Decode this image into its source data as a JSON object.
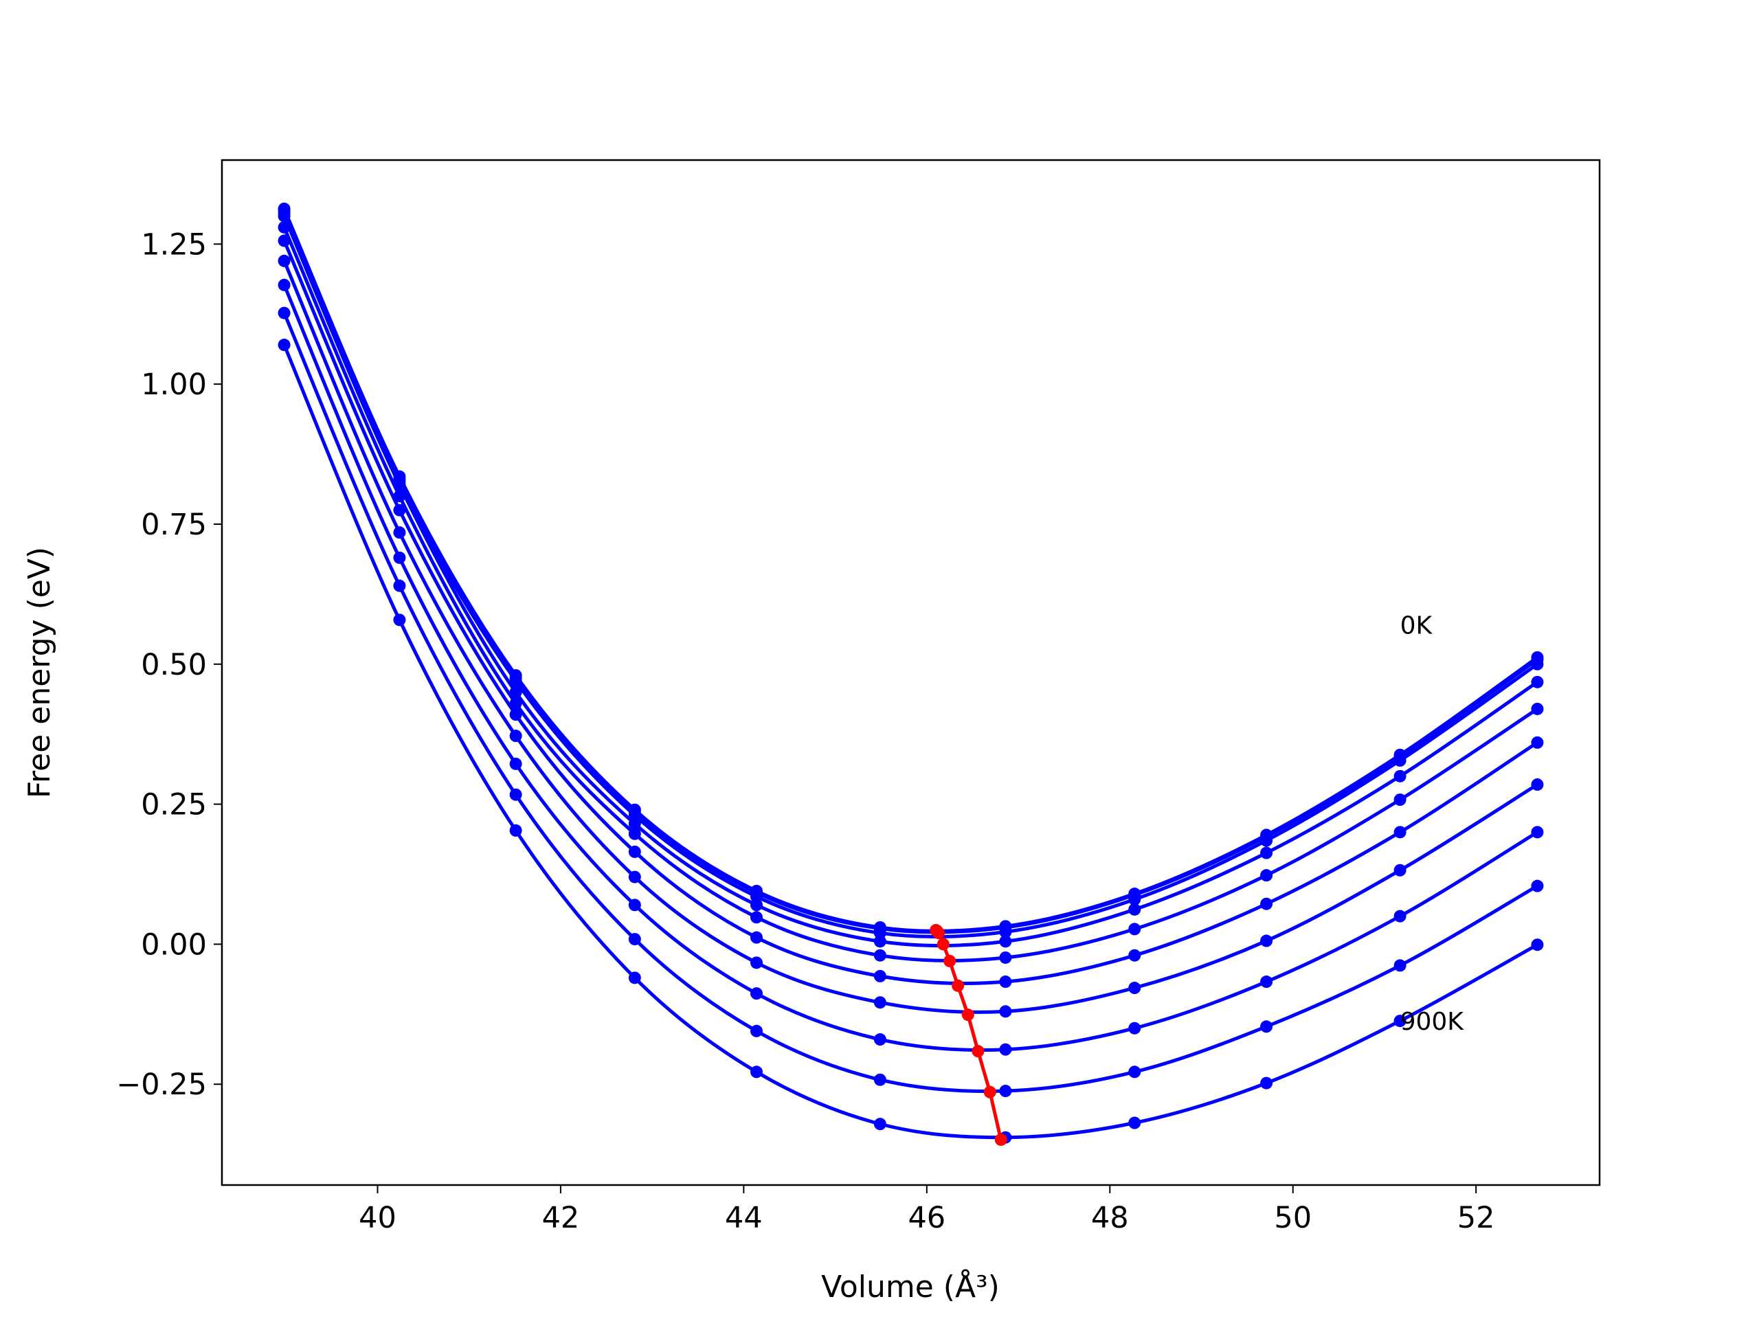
{
  "chart_data": {
    "type": "line",
    "xlabel": "Volume (Å³)",
    "ylabel": "Free energy (eV)",
    "x": [
      38.98,
      40.24,
      41.51,
      42.81,
      44.14,
      45.49,
      46.86,
      48.27,
      49.71,
      51.17,
      52.67
    ],
    "series": [
      {
        "color": "#0000ff",
        "values": [
          1.313,
          0.835,
          0.48,
          0.24,
          0.095,
          0.03,
          0.032,
          0.09,
          0.195,
          0.338,
          0.512
        ]
      },
      {
        "color": "#0000ff",
        "values": [
          1.31,
          0.83,
          0.475,
          0.237,
          0.092,
          0.028,
          0.03,
          0.088,
          0.192,
          0.335,
          0.508
        ]
      },
      {
        "color": "#0000ff",
        "values": [
          1.305,
          0.825,
          0.47,
          0.23,
          0.085,
          0.02,
          0.022,
          0.08,
          0.185,
          0.328,
          0.5
        ]
      },
      {
        "color": "#0000ff",
        "values": [
          1.3,
          0.82,
          0.45,
          0.215,
          0.07,
          0.005,
          0.005,
          0.062,
          0.163,
          0.3,
          0.468
        ]
      },
      {
        "color": "#0000ff",
        "values": [
          1.28,
          0.8,
          0.43,
          0.197,
          0.048,
          -0.02,
          -0.024,
          0.027,
          0.123,
          0.258,
          0.42
        ]
      },
      {
        "color": "#0000ff",
        "values": [
          1.256,
          0.775,
          0.41,
          0.165,
          0.012,
          -0.057,
          -0.067,
          -0.02,
          0.072,
          0.2,
          0.36
        ]
      },
      {
        "color": "#0000ff",
        "values": [
          1.22,
          0.735,
          0.372,
          0.12,
          -0.033,
          -0.104,
          -0.12,
          -0.078,
          0.006,
          0.132,
          0.285
        ]
      },
      {
        "color": "#0000ff",
        "values": [
          1.177,
          0.69,
          0.322,
          0.07,
          -0.088,
          -0.17,
          -0.188,
          -0.15,
          -0.067,
          0.05,
          0.2
        ]
      },
      {
        "color": "#0000ff",
        "values": [
          1.127,
          0.64,
          0.267,
          0.009,
          -0.155,
          -0.242,
          -0.262,
          -0.228,
          -0.147,
          -0.038,
          0.104
        ]
      },
      {
        "color": "#0000ff",
        "values": [
          1.07,
          0.579,
          0.203,
          -0.06,
          -0.228,
          -0.321,
          -0.345,
          -0.319,
          -0.248,
          -0.137,
          -0.001
        ]
      }
    ],
    "minima": {
      "color": "#ff0000",
      "x": [
        46.1,
        46.11,
        46.13,
        46.18,
        46.25,
        46.34,
        46.45,
        46.56,
        46.69,
        46.81
      ],
      "values": [
        0.025,
        0.024,
        0.02,
        0.0,
        -0.03,
        -0.074,
        -0.126,
        -0.191,
        -0.264,
        -0.349
      ]
    },
    "annotations": [
      {
        "text": "0K",
        "x": 51.17,
        "y": 0.57
      },
      {
        "text": "900K",
        "x": 51.17,
        "y": -0.137
      }
    ],
    "xlim": [
      38.3,
      53.35
    ],
    "ylim": [
      -0.43,
      1.4
    ],
    "xticks": [
      40,
      42,
      44,
      46,
      48,
      50,
      52
    ],
    "yticks": [
      {
        "value": -0.25,
        "label": "−0.25"
      },
      {
        "value": 0,
        "label": "0.00"
      },
      0.25,
      {
        "value": 0.5,
        "label": "0.50"
      },
      0.75,
      {
        "value": 1,
        "label": "1.00"
      },
      1.25
    ],
    "grid": false
  }
}
